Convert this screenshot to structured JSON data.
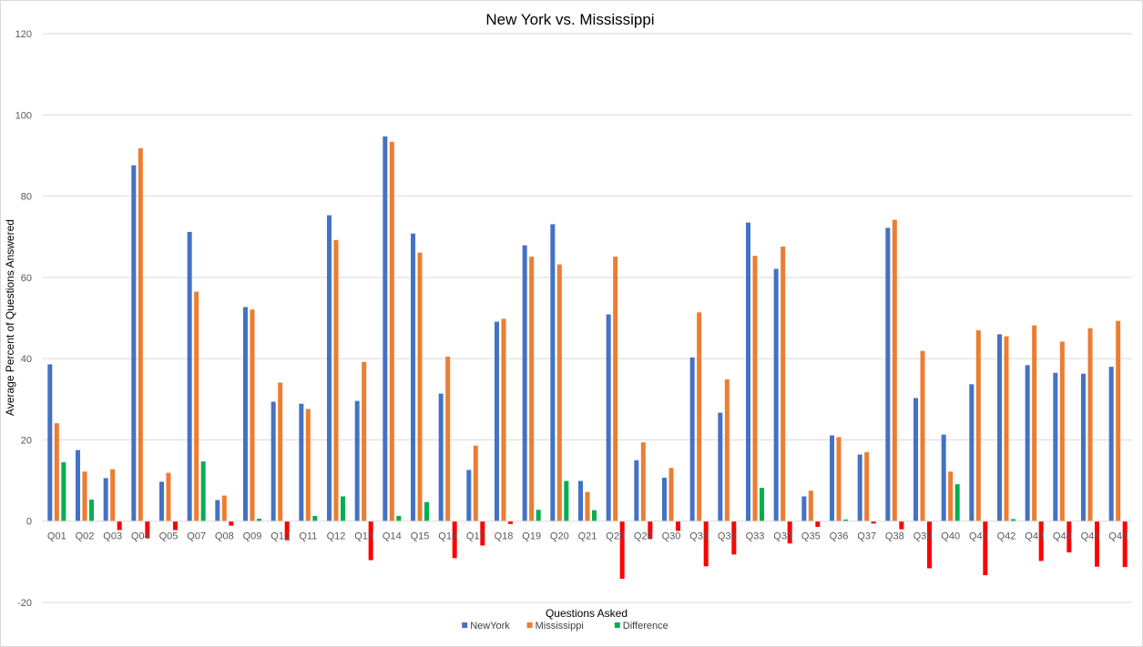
{
  "chart_data": {
    "type": "bar",
    "title": "New York vs. Mississippi",
    "xlabel": "Questions Asked",
    "ylabel": "Average Percent of Questions Answered",
    "ylim": [
      -20,
      120
    ],
    "yticks": [
      -20,
      0,
      20,
      40,
      60,
      80,
      100,
      120
    ],
    "grid": true,
    "legend_position": "bottom",
    "categories": [
      "Q01",
      "Q02",
      "Q03",
      "Q04",
      "Q05",
      "Q07",
      "Q08",
      "Q09",
      "Q10",
      "Q11",
      "Q12",
      "Q13",
      "Q14",
      "Q15",
      "Q16",
      "Q17",
      "Q18",
      "Q19",
      "Q20",
      "Q21",
      "Q28",
      "Q29",
      "Q30",
      "Q31",
      "Q32",
      "Q33",
      "Q34",
      "Q35",
      "Q36",
      "Q37",
      "Q38",
      "Q39",
      "Q40",
      "Q41",
      "Q42",
      "Q43",
      "Q44",
      "Q45",
      "Q46"
    ],
    "series": [
      {
        "name": "NewYork",
        "color": "#4472C4",
        "values": [
          38.6,
          17.5,
          10.6,
          87.6,
          9.7,
          71.2,
          5.2,
          52.7,
          29.4,
          28.9,
          75.3,
          29.6,
          94.7,
          70.8,
          31.4,
          12.6,
          49.1,
          67.9,
          73.1,
          9.9,
          50.9,
          15.0,
          10.7,
          40.3,
          26.7,
          73.5,
          62.1,
          6.1,
          21.1,
          16.4,
          72.2,
          30.3,
          21.3,
          33.7,
          46.0,
          38.4,
          36.5,
          36.3,
          38.0
        ]
      },
      {
        "name": "Mississippi",
        "color": "#ED7D31",
        "values": [
          24.1,
          12.2,
          12.8,
          91.8,
          11.9,
          56.5,
          6.3,
          52.1,
          34.1,
          27.6,
          69.2,
          39.2,
          93.4,
          66.1,
          40.5,
          18.6,
          49.8,
          65.1,
          63.2,
          7.2,
          65.1,
          19.4,
          13.1,
          51.4,
          34.9,
          65.3,
          67.6,
          7.5,
          20.7,
          17.0,
          74.2,
          41.9,
          12.2,
          47.0,
          45.5,
          48.2,
          44.2,
          47.5,
          49.3
        ]
      },
      {
        "name": "Difference",
        "color": "#00B050",
        "negative_color": "#FF0000",
        "values": [
          14.5,
          5.3,
          -2.2,
          -4.2,
          -2.2,
          14.7,
          -1.1,
          0.6,
          -4.7,
          1.3,
          6.1,
          -9.6,
          1.3,
          4.7,
          -9.1,
          -6.0,
          -0.7,
          2.8,
          9.9,
          2.7,
          -14.2,
          -4.4,
          -2.4,
          -11.1,
          -8.2,
          8.2,
          -5.5,
          -1.4,
          0.4,
          -0.6,
          -2.0,
          -11.6,
          9.1,
          -13.3,
          0.5,
          -9.8,
          -7.7,
          -11.2,
          -11.3
        ]
      }
    ]
  }
}
